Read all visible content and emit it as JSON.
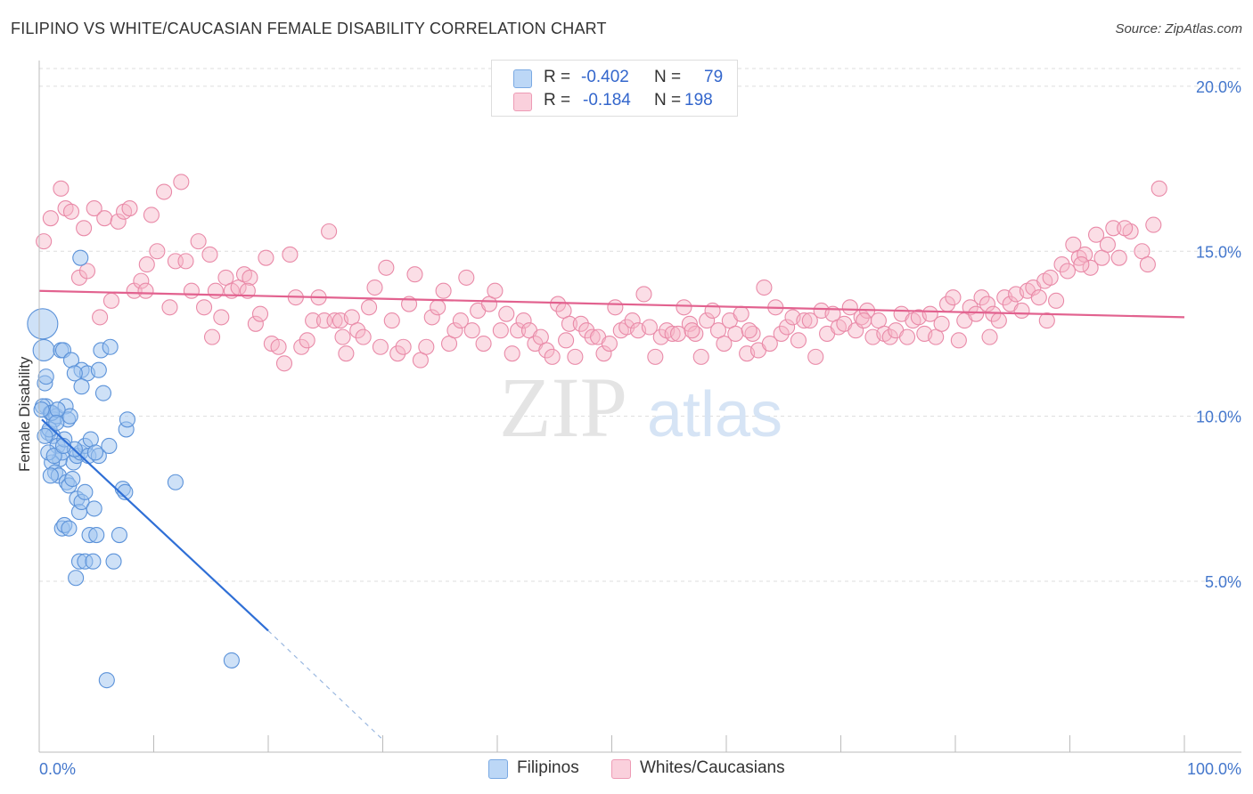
{
  "header": {
    "title": "FILIPINO VS WHITE/CAUCASIAN FEMALE DISABILITY CORRELATION CHART",
    "source": "Source: ZipAtlas.com"
  },
  "legend": {
    "r_label": "R =",
    "n_label": "N =",
    "rows": [
      {
        "name": "Filipinos",
        "r": "-0.402",
        "n": "79",
        "color": "#9ec4f0"
      },
      {
        "name": "Whites/Caucasians",
        "r": "-0.184",
        "n": "198",
        "color": "#f6b6c8"
      }
    ]
  },
  "bottom_legend": {
    "items": [
      "Filipinos",
      "Whites/Caucasians"
    ]
  },
  "watermark": {
    "part1": "ZIP",
    "part2": "atlas"
  },
  "colors": {
    "blue_fill": "#9ec4f0",
    "blue_stroke": "#5b92d9",
    "blue_line": "#2f6fd6",
    "pink_fill": "#f6b6c8",
    "pink_stroke": "#e98aa8",
    "pink_line": "#e2628f",
    "tick_text": "#4477cc",
    "grid": "#dddddd"
  },
  "chart_data": {
    "type": "scatter",
    "title": "FILIPINO VS WHITE/CAUCASIAN FEMALE DISABILITY CORRELATION CHART",
    "xlabel": "",
    "ylabel": "Female Disability",
    "xlim": [
      0,
      100
    ],
    "ylim": [
      0,
      20.5
    ],
    "x_tick_labels": [
      "0.0%",
      "100.0%"
    ],
    "y_ticks": [
      5,
      10,
      15,
      20
    ],
    "y_tick_labels": [
      "5.0%",
      "10.0%",
      "15.0%",
      "20.0%"
    ],
    "grid": true,
    "series": [
      {
        "name": "Filipinos",
        "r": -0.402,
        "n": 79,
        "trend": {
          "x": [
            0,
            20
          ],
          "y": [
            9.9,
            3.5
          ],
          "dashed_to": [
            30,
            0.2
          ]
        },
        "points": [
          [
            0.3,
            12.8
          ],
          [
            0.4,
            12.0
          ],
          [
            0.5,
            11.0
          ],
          [
            0.6,
            10.3
          ],
          [
            0.3,
            10.3
          ],
          [
            0.8,
            9.5
          ],
          [
            1.0,
            10.1
          ],
          [
            1.2,
            9.4
          ],
          [
            1.3,
            9.9
          ],
          [
            1.5,
            10.0
          ],
          [
            1.6,
            9.1
          ],
          [
            1.8,
            8.7
          ],
          [
            2.0,
            8.9
          ],
          [
            2.2,
            9.3
          ],
          [
            1.1,
            8.6
          ],
          [
            1.4,
            8.3
          ],
          [
            1.7,
            8.2
          ],
          [
            2.4,
            8.0
          ],
          [
            2.6,
            7.9
          ],
          [
            3.0,
            8.6
          ],
          [
            3.3,
            8.8
          ],
          [
            3.6,
            8.9
          ],
          [
            4.0,
            9.1
          ],
          [
            4.3,
            8.8
          ],
          [
            1.9,
            12.0
          ],
          [
            2.1,
            12.0
          ],
          [
            2.8,
            11.7
          ],
          [
            3.7,
            11.4
          ],
          [
            4.2,
            11.3
          ],
          [
            5.2,
            11.4
          ],
          [
            5.4,
            12.0
          ],
          [
            6.2,
            12.1
          ],
          [
            3.1,
            11.3
          ],
          [
            3.7,
            10.9
          ],
          [
            5.6,
            10.7
          ],
          [
            2.3,
            10.3
          ],
          [
            2.5,
            9.9
          ],
          [
            2.7,
            10.0
          ],
          [
            1.1,
            10.1
          ],
          [
            0.9,
            9.6
          ],
          [
            1.6,
            10.2
          ],
          [
            3.3,
            7.5
          ],
          [
            3.5,
            7.1
          ],
          [
            3.7,
            7.4
          ],
          [
            4.0,
            7.7
          ],
          [
            4.8,
            7.2
          ],
          [
            2.0,
            6.6
          ],
          [
            2.2,
            6.7
          ],
          [
            2.6,
            6.6
          ],
          [
            4.4,
            6.4
          ],
          [
            5.0,
            6.4
          ],
          [
            7.0,
            6.4
          ],
          [
            3.5,
            5.6
          ],
          [
            4.0,
            5.6
          ],
          [
            4.7,
            5.6
          ],
          [
            6.5,
            5.6
          ],
          [
            3.2,
            5.1
          ],
          [
            7.3,
            7.8
          ],
          [
            7.5,
            7.7
          ],
          [
            7.6,
            9.6
          ],
          [
            7.7,
            9.9
          ],
          [
            11.9,
            8.0
          ],
          [
            16.8,
            2.6
          ],
          [
            5.9,
            2.0
          ],
          [
            0.2,
            10.2
          ],
          [
            0.5,
            9.4
          ],
          [
            0.8,
            8.9
          ],
          [
            1.0,
            8.2
          ],
          [
            1.3,
            8.8
          ],
          [
            2.9,
            8.1
          ],
          [
            3.1,
            9.0
          ],
          [
            4.5,
            9.3
          ],
          [
            5.2,
            8.8
          ],
          [
            6.1,
            9.1
          ],
          [
            1.5,
            9.8
          ],
          [
            2.1,
            9.1
          ],
          [
            0.6,
            11.2
          ],
          [
            3.6,
            14.8
          ],
          [
            4.9,
            8.9
          ]
        ]
      },
      {
        "name": "Whites/Caucasians",
        "r": -0.184,
        "n": 198,
        "trend": {
          "x": [
            0,
            100
          ],
          "y": [
            13.8,
            13.0
          ]
        },
        "points": [
          [
            0.4,
            15.3
          ],
          [
            1.0,
            16.0
          ],
          [
            1.9,
            16.9
          ],
          [
            2.3,
            16.3
          ],
          [
            2.8,
            16.2
          ],
          [
            3.5,
            14.2
          ],
          [
            3.9,
            15.7
          ],
          [
            4.2,
            14.4
          ],
          [
            4.8,
            16.3
          ],
          [
            5.3,
            13.0
          ],
          [
            5.7,
            16.0
          ],
          [
            6.3,
            13.5
          ],
          [
            6.9,
            15.9
          ],
          [
            7.4,
            16.2
          ],
          [
            7.9,
            16.3
          ],
          [
            8.3,
            13.8
          ],
          [
            8.9,
            14.1
          ],
          [
            9.4,
            14.6
          ],
          [
            9.8,
            16.1
          ],
          [
            10.3,
            15.0
          ],
          [
            10.9,
            16.8
          ],
          [
            11.4,
            13.3
          ],
          [
            11.9,
            14.7
          ],
          [
            12.4,
            17.1
          ],
          [
            12.8,
            14.7
          ],
          [
            13.3,
            13.8
          ],
          [
            13.9,
            15.3
          ],
          [
            14.4,
            13.3
          ],
          [
            14.9,
            14.9
          ],
          [
            15.4,
            13.8
          ],
          [
            15.9,
            13.0
          ],
          [
            16.3,
            14.2
          ],
          [
            16.8,
            13.8
          ],
          [
            17.4,
            13.9
          ],
          [
            17.9,
            14.3
          ],
          [
            18.4,
            14.2
          ],
          [
            18.9,
            12.8
          ],
          [
            19.3,
            13.1
          ],
          [
            19.8,
            14.8
          ],
          [
            20.3,
            12.2
          ],
          [
            20.9,
            12.1
          ],
          [
            21.4,
            11.6
          ],
          [
            21.9,
            14.9
          ],
          [
            22.4,
            13.6
          ],
          [
            22.9,
            12.1
          ],
          [
            23.4,
            12.3
          ],
          [
            23.9,
            12.9
          ],
          [
            24.4,
            13.6
          ],
          [
            24.9,
            12.9
          ],
          [
            25.3,
            15.6
          ],
          [
            25.8,
            12.9
          ],
          [
            26.3,
            12.9
          ],
          [
            26.8,
            11.9
          ],
          [
            27.3,
            13.0
          ],
          [
            27.8,
            12.6
          ],
          [
            28.3,
            12.4
          ],
          [
            28.8,
            13.3
          ],
          [
            29.3,
            13.9
          ],
          [
            29.8,
            12.1
          ],
          [
            30.3,
            14.5
          ],
          [
            30.8,
            12.9
          ],
          [
            31.3,
            11.9
          ],
          [
            31.8,
            12.1
          ],
          [
            32.3,
            13.4
          ],
          [
            32.8,
            14.3
          ],
          [
            33.3,
            11.7
          ],
          [
            33.8,
            12.1
          ],
          [
            34.3,
            13.0
          ],
          [
            34.8,
            13.3
          ],
          [
            35.3,
            13.8
          ],
          [
            35.8,
            12.2
          ],
          [
            36.3,
            12.6
          ],
          [
            36.8,
            12.9
          ],
          [
            37.3,
            14.2
          ],
          [
            37.8,
            12.6
          ],
          [
            38.3,
            13.2
          ],
          [
            38.8,
            12.2
          ],
          [
            39.3,
            13.4
          ],
          [
            39.8,
            13.8
          ],
          [
            40.3,
            12.6
          ],
          [
            40.8,
            13.1
          ],
          [
            41.3,
            11.9
          ],
          [
            41.8,
            12.6
          ],
          [
            42.3,
            12.9
          ],
          [
            42.8,
            12.6
          ],
          [
            43.3,
            12.2
          ],
          [
            43.8,
            12.4
          ],
          [
            44.3,
            12.0
          ],
          [
            44.8,
            11.8
          ],
          [
            45.3,
            13.4
          ],
          [
            45.8,
            13.2
          ],
          [
            46.3,
            12.8
          ],
          [
            46.8,
            11.8
          ],
          [
            47.3,
            12.8
          ],
          [
            47.8,
            12.6
          ],
          [
            48.3,
            12.4
          ],
          [
            48.8,
            12.4
          ],
          [
            49.3,
            11.9
          ],
          [
            49.8,
            12.2
          ],
          [
            50.3,
            13.3
          ],
          [
            50.8,
            12.6
          ],
          [
            51.3,
            12.7
          ],
          [
            51.8,
            12.9
          ],
          [
            52.3,
            12.6
          ],
          [
            52.8,
            13.7
          ],
          [
            53.3,
            12.7
          ],
          [
            53.8,
            11.8
          ],
          [
            54.3,
            12.4
          ],
          [
            54.8,
            12.6
          ],
          [
            55.3,
            12.5
          ],
          [
            55.8,
            12.5
          ],
          [
            56.3,
            13.3
          ],
          [
            56.8,
            12.8
          ],
          [
            57.3,
            12.5
          ],
          [
            57.8,
            11.8
          ],
          [
            58.3,
            12.9
          ],
          [
            58.8,
            13.2
          ],
          [
            59.3,
            12.6
          ],
          [
            59.8,
            12.2
          ],
          [
            60.3,
            12.9
          ],
          [
            60.8,
            12.5
          ],
          [
            61.3,
            13.1
          ],
          [
            61.8,
            11.9
          ],
          [
            62.3,
            12.5
          ],
          [
            62.8,
            12.0
          ],
          [
            63.3,
            13.9
          ],
          [
            63.8,
            12.2
          ],
          [
            64.3,
            13.3
          ],
          [
            64.8,
            12.5
          ],
          [
            65.3,
            12.7
          ],
          [
            65.8,
            13.0
          ],
          [
            66.3,
            12.3
          ],
          [
            66.8,
            12.9
          ],
          [
            67.3,
            12.9
          ],
          [
            67.8,
            11.8
          ],
          [
            68.3,
            13.2
          ],
          [
            68.8,
            12.5
          ],
          [
            69.3,
            13.1
          ],
          [
            69.8,
            12.7
          ],
          [
            70.3,
            12.8
          ],
          [
            70.8,
            13.3
          ],
          [
            71.3,
            12.6
          ],
          [
            71.8,
            13.0
          ],
          [
            72.3,
            13.2
          ],
          [
            72.8,
            12.4
          ],
          [
            73.3,
            12.9
          ],
          [
            73.8,
            12.5
          ],
          [
            74.3,
            12.4
          ],
          [
            74.8,
            12.6
          ],
          [
            75.3,
            13.1
          ],
          [
            75.8,
            12.4
          ],
          [
            76.3,
            12.9
          ],
          [
            76.8,
            13.0
          ],
          [
            77.3,
            12.5
          ],
          [
            77.8,
            13.1
          ],
          [
            78.3,
            12.4
          ],
          [
            78.8,
            12.8
          ],
          [
            79.3,
            13.4
          ],
          [
            79.8,
            13.6
          ],
          [
            80.3,
            12.3
          ],
          [
            80.8,
            12.9
          ],
          [
            81.3,
            13.3
          ],
          [
            81.8,
            13.1
          ],
          [
            82.3,
            13.6
          ],
          [
            82.8,
            13.4
          ],
          [
            83.3,
            13.1
          ],
          [
            83.8,
            12.9
          ],
          [
            84.3,
            13.6
          ],
          [
            84.8,
            13.4
          ],
          [
            85.3,
            13.7
          ],
          [
            85.8,
            13.2
          ],
          [
            86.3,
            13.8
          ],
          [
            86.8,
            13.9
          ],
          [
            87.3,
            13.6
          ],
          [
            87.8,
            14.1
          ],
          [
            88.3,
            14.2
          ],
          [
            88.8,
            13.5
          ],
          [
            89.3,
            14.6
          ],
          [
            89.8,
            14.4
          ],
          [
            90.3,
            15.2
          ],
          [
            90.8,
            14.8
          ],
          [
            91.3,
            14.9
          ],
          [
            91.8,
            14.5
          ],
          [
            92.3,
            15.5
          ],
          [
            92.8,
            14.8
          ],
          [
            93.3,
            15.2
          ],
          [
            93.8,
            15.7
          ],
          [
            94.3,
            14.8
          ],
          [
            95.3,
            15.6
          ],
          [
            96.3,
            15.0
          ],
          [
            96.8,
            14.6
          ],
          [
            97.3,
            15.8
          ],
          [
            97.8,
            16.9
          ],
          [
            9.3,
            13.8
          ],
          [
            18.2,
            13.8
          ],
          [
            26.5,
            12.4
          ],
          [
            46.0,
            12.3
          ],
          [
            57.0,
            12.6
          ],
          [
            62.0,
            12.6
          ],
          [
            72.0,
            12.9
          ],
          [
            83.0,
            12.4
          ],
          [
            88.0,
            12.9
          ],
          [
            91.0,
            14.6
          ],
          [
            94.8,
            15.7
          ],
          [
            15.1,
            12.4
          ]
        ]
      }
    ]
  }
}
